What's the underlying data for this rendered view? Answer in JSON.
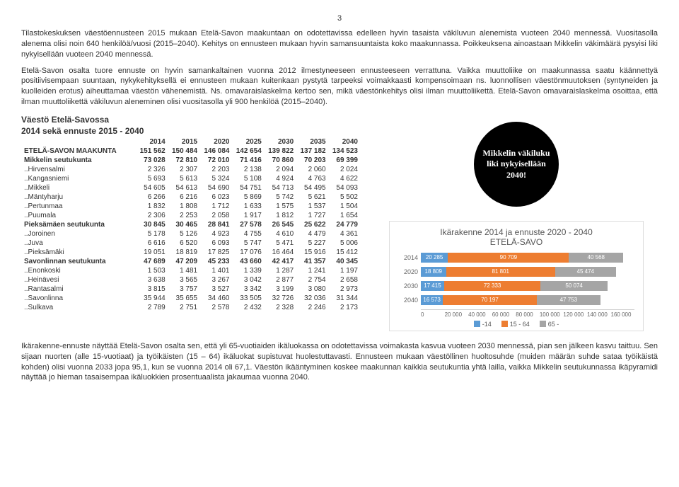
{
  "page_number": "3",
  "paragraphs": [
    "Tilastokeskuksen väestöennusteen 2015 mukaan Etelä-Savon maakuntaan on odotettavissa edelleen hyvin tasaista väkiluvun alenemista vuoteen 2040 mennessä. Vuositasolla alenema olisi noin 640 henkilöä/vuosi (2015–2040). Kehitys on ennusteen mukaan hyvin samansuuntaista koko maakunnassa. Poikkeuksena ainoastaan Mikkelin väkimäärä pysyisi liki nykyisellään vuoteen 2040 mennessä.",
    "Etelä-Savon osalta tuore ennuste on hyvin samankaltainen vuonna 2012 ilmestyneeseen ennusteeseen verrattuna. Vaikka muuttoliike on maakunnassa saatu käännettyä positiivisempaan suuntaan, nykykehityksellä ei ennusteen mukaan kuitenkaan pystytä tarpeeksi voimakkaasti kompensoimaan ns. luonnollisen väestönmuutoksen (syntyneiden ja kuolleiden erotus) aiheuttamaa väestön vähenemistä. Ns. omavaraislaskelma kertoo sen, mikä väestönkehitys olisi ilman muuttoliikettä. Etelä-Savon omavaraislaskelma osoittaa, että ilman muuttoliikettä väkiluvun aleneminen olisi vuositasolla yli 900 henkilöä (2015–2040)."
  ],
  "table": {
    "title_line1": "Väestö Etelä-Savossa",
    "title_line2": "2014 sekä ennuste 2015 - 2040",
    "columns": [
      "",
      "2014",
      "2015",
      "2020",
      "2025",
      "2030",
      "2035",
      "2040"
    ],
    "rows": [
      {
        "bold": true,
        "cells": [
          "ETELÄ-SAVON MAAKUNTA",
          "151 562",
          "150 484",
          "146 084",
          "142 654",
          "139 822",
          "137 182",
          "134 523"
        ]
      },
      {
        "bold": true,
        "cells": [
          "Mikkelin seutukunta",
          "73 028",
          "72 810",
          "72 010",
          "71 416",
          "70 860",
          "70 203",
          "69 399"
        ]
      },
      {
        "bold": false,
        "cells": [
          "..Hirvensalmi",
          "2 326",
          "2 307",
          "2 203",
          "2 138",
          "2 094",
          "2 060",
          "2 024"
        ]
      },
      {
        "bold": false,
        "cells": [
          "..Kangasniemi",
          "5 693",
          "5 613",
          "5 324",
          "5 108",
          "4 924",
          "4 763",
          "4 622"
        ]
      },
      {
        "bold": false,
        "cells": [
          "..Mikkeli",
          "54 605",
          "54 613",
          "54 690",
          "54 751",
          "54 713",
          "54 495",
          "54 093"
        ]
      },
      {
        "bold": false,
        "cells": [
          "..Mäntyharju",
          "6 266",
          "6 216",
          "6 023",
          "5 869",
          "5 742",
          "5 621",
          "5 502"
        ]
      },
      {
        "bold": false,
        "cells": [
          "..Pertunmaa",
          "1 832",
          "1 808",
          "1 712",
          "1 633",
          "1 575",
          "1 537",
          "1 504"
        ]
      },
      {
        "bold": false,
        "cells": [
          "..Puumala",
          "2 306",
          "2 253",
          "2 058",
          "1 917",
          "1 812",
          "1 727",
          "1 654"
        ]
      },
      {
        "bold": true,
        "cells": [
          "Pieksämäen seutukunta",
          "30 845",
          "30 465",
          "28 841",
          "27 578",
          "26 545",
          "25 622",
          "24 779"
        ]
      },
      {
        "bold": false,
        "cells": [
          "..Joroinen",
          "5 178",
          "5 126",
          "4 923",
          "4 755",
          "4 610",
          "4 479",
          "4 361"
        ]
      },
      {
        "bold": false,
        "cells": [
          "..Juva",
          "6 616",
          "6 520",
          "6 093",
          "5 747",
          "5 471",
          "5 227",
          "5 006"
        ]
      },
      {
        "bold": false,
        "cells": [
          "..Pieksämäki",
          "19 051",
          "18 819",
          "17 825",
          "17 076",
          "16 464",
          "15 916",
          "15 412"
        ]
      },
      {
        "bold": true,
        "cells": [
          "Savonlinnan seutukunta",
          "47 689",
          "47 209",
          "45 233",
          "43 660",
          "42 417",
          "41 357",
          "40 345"
        ]
      },
      {
        "bold": false,
        "cells": [
          "..Enonkoski",
          "1 503",
          "1 481",
          "1 401",
          "1 339",
          "1 287",
          "1 241",
          "1 197"
        ]
      },
      {
        "bold": false,
        "cells": [
          "..Heinävesi",
          "3 638",
          "3 565",
          "3 267",
          "3 042",
          "2 877",
          "2 754",
          "2 658"
        ]
      },
      {
        "bold": false,
        "cells": [
          "..Rantasalmi",
          "3 815",
          "3 757",
          "3 527",
          "3 342",
          "3 199",
          "3 080",
          "2 973"
        ]
      },
      {
        "bold": false,
        "cells": [
          "..Savonlinna",
          "35 944",
          "35 655",
          "34 460",
          "33 505",
          "32 726",
          "32 036",
          "31 344"
        ]
      },
      {
        "bold": false,
        "cells": [
          "..Sulkava",
          "2 789",
          "2 751",
          "2 578",
          "2 432",
          "2 328",
          "2 246",
          "2 173"
        ]
      }
    ]
  },
  "badge_text": "Mikkelin väkiluku liki nykyisellään 2040!",
  "chart": {
    "title": "Ikärakenne 2014 ja ennuste 2020 - 2040\nETELÄ-SAVO",
    "x_max": 160000,
    "x_ticks": [
      "0",
      "20 000",
      "40 000",
      "60 000",
      "80 000",
      "100 000",
      "120 000",
      "140 000",
      "160 000"
    ],
    "series_colors": {
      "a": "#5b9bd5",
      "b": "#ed7d31",
      "c": "#a5a5a5"
    },
    "legend": [
      "-14",
      "15 - 64",
      "65 -"
    ],
    "rows": [
      {
        "label": "2014",
        "a": 20285,
        "b": 90709,
        "c": 40568
      },
      {
        "label": "2020",
        "a": 18809,
        "b": 81801,
        "c": 45474
      },
      {
        "label": "2030",
        "a": 17415,
        "b": 72333,
        "c": 50074
      },
      {
        "label": "2040",
        "a": 16573,
        "b": 70197,
        "c": 47753
      }
    ]
  },
  "bottom_paragraph": "Ikärakenne-ennuste näyttää Etelä-Savon osalta sen, että yli 65-vuotiaiden ikäluokassa on odotettavissa voimakasta kasvua vuoteen 2030 mennessä, pian sen jälkeen kasvu taittuu. Sen sijaan nuorten (alle 15-vuotiaat) ja työikäisten (15 – 64) ikäluokat supistuvat huolestuttavasti. Ennusteen mukaan väestöllinen huoltosuhde (muiden määrän suhde sataa työikäistä kohden) olisi vuonna 2033 jopa 95,1, kun se vuonna 2014 oli 67,1. Väestön ikääntyminen koskee maakunnan kaikkia seutukuntia yhtä lailla, vaikka Mikkelin seutukunnassa ikäpyramidi näyttää jo hieman tasaisempaa ikäluokkien prosentuaalista jakaumaa vuonna 2040."
}
